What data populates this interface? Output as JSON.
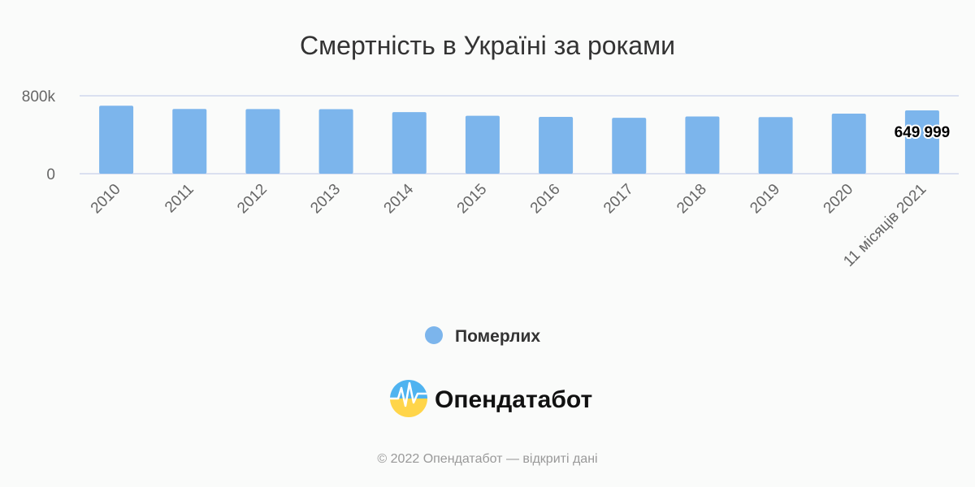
{
  "chart_data": {
    "type": "bar",
    "title": "Смертність в Україні за роками",
    "categories": [
      "2010",
      "2011",
      "2012",
      "2013",
      "2014",
      "2015",
      "2016",
      "2017",
      "2018",
      "2019",
      "2020",
      "11 місяців 2021"
    ],
    "series": [
      {
        "name": "Померлих",
        "color": "#7cb5ec",
        "values": [
          698235,
          664588,
          663139,
          662368,
          632296,
          594796,
          583631,
          574123,
          587665,
          581114,
          616835,
          649999
        ]
      }
    ],
    "ylim": [
      0,
      800000
    ],
    "yticks": [
      {
        "value": 0,
        "label": "0"
      },
      {
        "value": 800000,
        "label": "800k"
      }
    ],
    "data_labels": [
      {
        "index": 11,
        "text": "649 999"
      }
    ],
    "grid": true,
    "legend_position": "bottom-center"
  },
  "brand": {
    "name": "Опендатабот",
    "logo_icon": "opendatabot-logo-icon"
  },
  "credits": "© 2022 Опендатабот — відкриті дані"
}
